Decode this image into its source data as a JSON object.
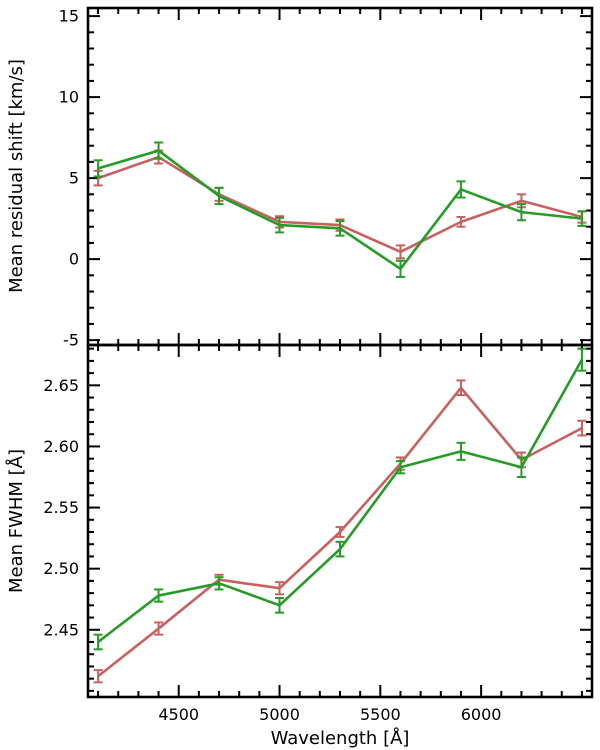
{
  "figure": {
    "background": "#ffffff",
    "axis_color": "#000000"
  },
  "labels": {
    "top_ylabel": "Mean residual shift [km/s]",
    "bottom_ylabel": "Mean FWHM [Å]",
    "xlabel": "Wavelength [Å]"
  },
  "chart_data": [
    {
      "type": "line",
      "panel": "top",
      "title": "",
      "xlabel": "",
      "ylabel": "Mean residual shift [km/s]",
      "xlim": [
        4050,
        6550
      ],
      "ylim": [
        -5.3,
        15.5
      ],
      "grid": false,
      "legend": "none",
      "xticks": [
        4500,
        5000,
        5500,
        6000
      ],
      "xtick_labels": [
        "",
        "",
        "",
        ""
      ],
      "xtick_minor": 100,
      "yticks": [
        -5,
        0,
        5,
        10,
        15
      ],
      "ytick_labels": [
        "-5",
        "0",
        "5",
        "10",
        "15"
      ],
      "ytick_minor": 1,
      "x": [
        4100,
        4400,
        4700,
        5000,
        5300,
        5600,
        5900,
        6200,
        6500
      ],
      "series": [
        {
          "name": "red",
          "color": "#c96060",
          "values": [
            5.0,
            6.3,
            4.0,
            2.3,
            2.1,
            0.45,
            2.3,
            3.6,
            2.6
          ],
          "errors": [
            0.45,
            0.4,
            0.4,
            0.35,
            0.35,
            0.4,
            0.3,
            0.4,
            0.35
          ]
        },
        {
          "name": "green",
          "color": "#279b27",
          "values": [
            5.6,
            6.7,
            3.9,
            2.1,
            1.9,
            -0.6,
            4.3,
            2.9,
            2.5
          ],
          "errors": [
            0.5,
            0.5,
            0.5,
            0.45,
            0.45,
            0.5,
            0.5,
            0.5,
            0.45
          ]
        }
      ]
    },
    {
      "type": "line",
      "panel": "bottom",
      "title": "",
      "xlabel": "Wavelength [Å]",
      "ylabel": "Mean FWHM [Å]",
      "xlim": [
        4050,
        6550
      ],
      "ylim": [
        2.395,
        2.683
      ],
      "grid": false,
      "legend": "none",
      "xticks": [
        4500,
        5000,
        5500,
        6000
      ],
      "xtick_labels": [
        "4500",
        "5000",
        "5500",
        "6000"
      ],
      "xtick_minor": 100,
      "yticks": [
        2.45,
        2.5,
        2.55,
        2.6,
        2.65
      ],
      "ytick_labels": [
        "2.45",
        "2.50",
        "2.55",
        "2.60",
        "2.65"
      ],
      "ytick_minor": 0.01,
      "x": [
        4100,
        4400,
        4700,
        5000,
        5300,
        5600,
        5900,
        6200,
        6500
      ],
      "series": [
        {
          "name": "red",
          "color": "#c96060",
          "values": [
            2.412,
            2.451,
            2.491,
            2.484,
            2.53,
            2.586,
            2.648,
            2.589,
            2.615
          ],
          "errors": [
            0.005,
            0.005,
            0.004,
            0.005,
            0.004,
            0.005,
            0.006,
            0.006,
            0.006
          ]
        },
        {
          "name": "green",
          "color": "#279b27",
          "values": [
            2.44,
            2.478,
            2.488,
            2.47,
            2.516,
            2.583,
            2.596,
            2.583,
            2.671
          ],
          "errors": [
            0.006,
            0.005,
            0.005,
            0.006,
            0.006,
            0.005,
            0.007,
            0.008,
            0.009
          ]
        }
      ]
    }
  ]
}
